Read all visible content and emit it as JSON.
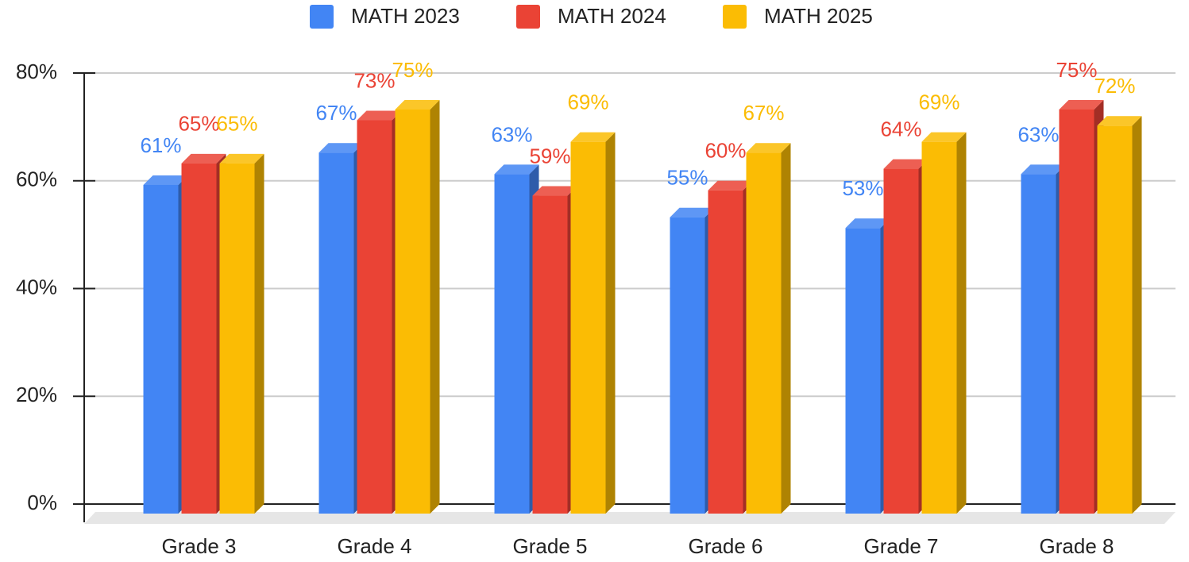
{
  "chart_data": {
    "type": "bar3d",
    "categories": [
      "Grade 3",
      "Grade 4",
      "Grade 5",
      "Grade 6",
      "Grade 7",
      "Grade 8"
    ],
    "series": [
      {
        "name": "MATH 2023",
        "color": "#4285f4",
        "values": [
          61,
          67,
          63,
          55,
          53,
          63
        ],
        "value_labels": [
          "61%",
          "67%",
          "63%",
          "55%",
          "53%",
          "63%"
        ]
      },
      {
        "name": "MATH 2024",
        "color": "#ea4335",
        "values": [
          65,
          73,
          59,
          60,
          64,
          75
        ],
        "value_labels": [
          "65%",
          "73%",
          "59%",
          "60%",
          "64%",
          "75%"
        ]
      },
      {
        "name": "MATH 2025",
        "color": "#fbbc04",
        "values": [
          65,
          75,
          69,
          67,
          69,
          72
        ],
        "value_labels": [
          "65%",
          "75%",
          "69%",
          "67%",
          "69%",
          "72%"
        ]
      }
    ],
    "ylim": [
      0,
      80
    ],
    "yticks": [
      {
        "value": 0,
        "label": "0%"
      },
      {
        "value": 20,
        "label": "20%"
      },
      {
        "value": 40,
        "label": "40%"
      },
      {
        "value": 60,
        "label": "60%"
      },
      {
        "value": 80,
        "label": "80%"
      }
    ],
    "grid": true,
    "legend": "top"
  }
}
